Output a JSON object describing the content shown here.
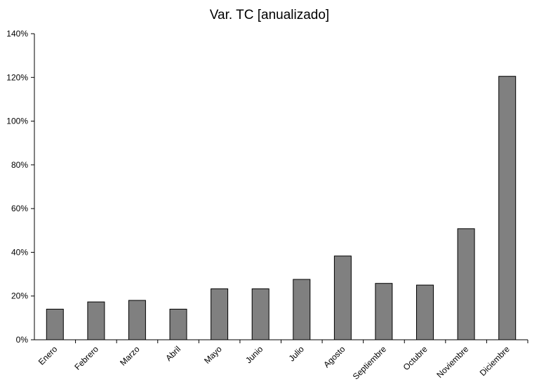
{
  "chart_data": {
    "type": "bar",
    "title": "Var. TC [anualizado]",
    "xlabel": "",
    "ylabel": "",
    "categories": [
      "Enero",
      "Febrero",
      "Marzo",
      "Abril",
      "Mayo",
      "Junio",
      "Julio",
      "Agosto",
      "Septiembre",
      "Octubre",
      "Noviembre",
      "Diciembre"
    ],
    "values": [
      14,
      17.3,
      18,
      14,
      23.3,
      23.3,
      27.6,
      38.3,
      25.8,
      25,
      50.8,
      120.5
    ],
    "value_unit": "%",
    "ylim": [
      0,
      140
    ],
    "yticks": [
      "0%",
      "20%",
      "40%",
      "60%",
      "80%",
      "100%",
      "120%",
      "140%"
    ],
    "ytick_values": [
      0,
      20,
      40,
      60,
      80,
      100,
      120,
      140
    ],
    "grid": false,
    "legend": "none",
    "bar_color": "#808080"
  }
}
